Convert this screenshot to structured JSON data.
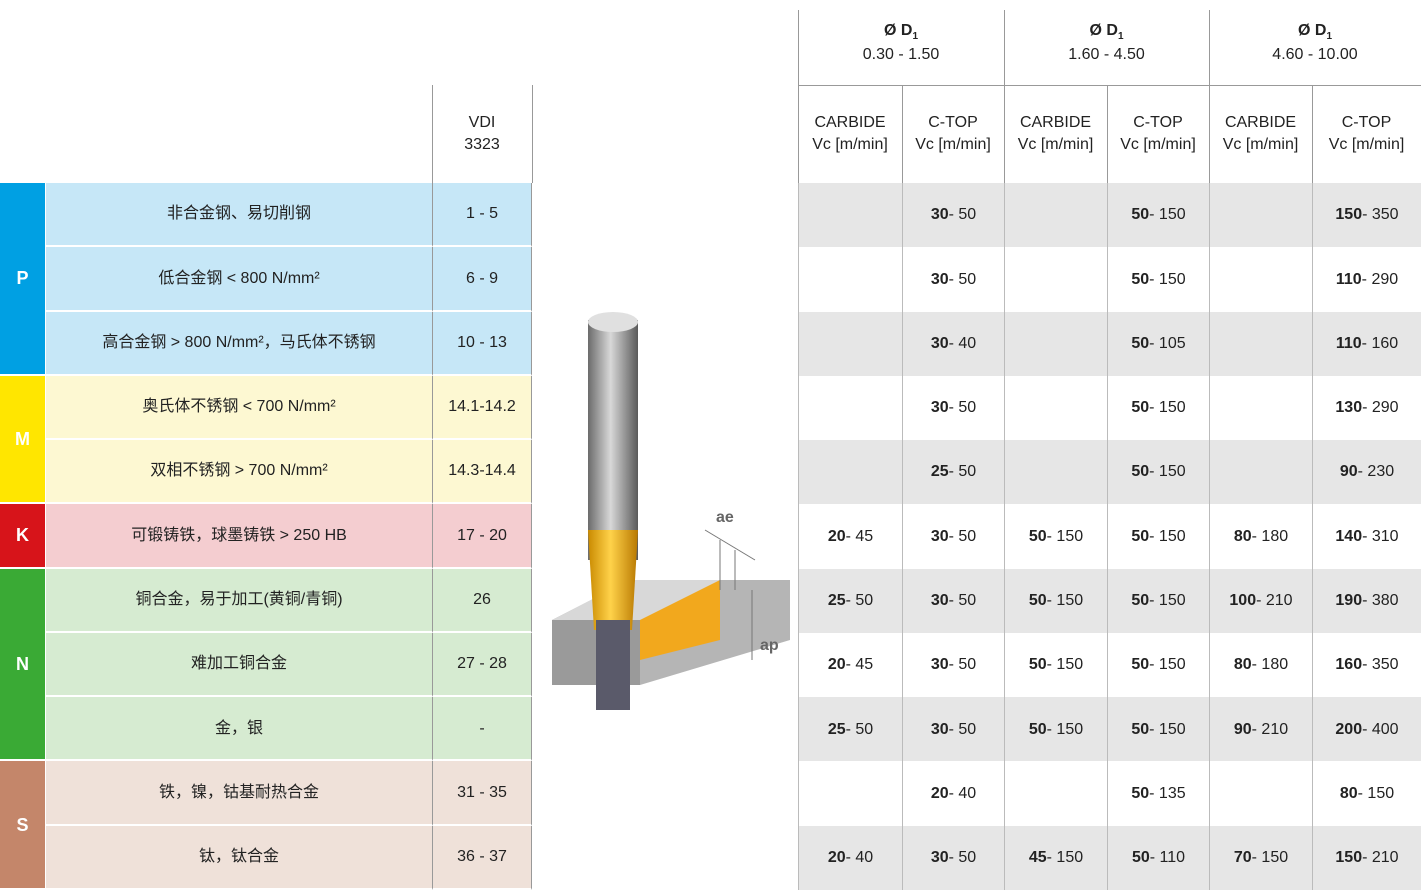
{
  "header": {
    "groups": [
      {
        "symbol": "Ø D",
        "sub": "1",
        "range": "0.30 - 1.50"
      },
      {
        "symbol": "Ø D",
        "sub": "1",
        "range": "1.60 - 4.50"
      },
      {
        "symbol": "Ø D",
        "sub": "1",
        "range": "4.60 - 10.00"
      }
    ],
    "vdi": [
      "VDI",
      "3323"
    ],
    "columns": [
      {
        "grade": "CARBIDE",
        "unit": "Vc [m/min]"
      },
      {
        "grade": "C-TOP",
        "unit": "Vc [m/min]"
      },
      {
        "grade": "CARBIDE",
        "unit": "Vc [m/min]"
      },
      {
        "grade": "C-TOP",
        "unit": "Vc [m/min]"
      },
      {
        "grade": "CARBIDE",
        "unit": "Vc [m/min]"
      },
      {
        "grade": "C-TOP",
        "unit": "Vc [m/min]"
      }
    ]
  },
  "image_labels": [
    "ae",
    "ap"
  ],
  "groups": [
    {
      "letter": "P",
      "color": "#00a0e3",
      "light": "#c6e7f7",
      "rows": [
        {
          "material": "非合金钢、易切削钢",
          "vdi": "1 - 5",
          "cells": [
            null,
            {
              "b": "30",
              "r": " - 50"
            },
            null,
            {
              "b": "50",
              "r": " - 150"
            },
            null,
            {
              "b": "150",
              "r": " - 350"
            }
          ]
        },
        {
          "material": "低合金钢 < 800 N/mm²",
          "vdi": "6 - 9",
          "cells": [
            null,
            {
              "b": "30",
              "r": " - 50"
            },
            null,
            {
              "b": "50",
              "r": " - 150"
            },
            null,
            {
              "b": "110",
              "r": " - 290"
            }
          ]
        },
        {
          "material": "高合金钢 > 800 N/mm²，马氏体不锈钢",
          "vdi": "10 - 13",
          "cells": [
            null,
            {
              "b": "30",
              "r": " - 40"
            },
            null,
            {
              "b": "50",
              "r": " - 105"
            },
            null,
            {
              "b": "110",
              "r": " - 160"
            }
          ]
        }
      ]
    },
    {
      "letter": "M",
      "color": "#ffe600",
      "light": "#fdf8d2",
      "rows": [
        {
          "material": "奥氏体不锈钢 < 700 N/mm²",
          "vdi": "14.1-14.2",
          "cells": [
            null,
            {
              "b": "30",
              "r": " - 50"
            },
            null,
            {
              "b": "50",
              "r": " - 150"
            },
            null,
            {
              "b": "130",
              "r": " - 290"
            }
          ]
        },
        {
          "material": "双相不锈钢 > 700 N/mm²",
          "vdi": "14.3-14.4",
          "cells": [
            null,
            {
              "b": "25",
              "r": " - 50"
            },
            null,
            {
              "b": "50",
              "r": " - 150"
            },
            null,
            {
              "b": "90",
              "r": " - 230"
            }
          ]
        }
      ]
    },
    {
      "letter": "K",
      "color": "#d7141a",
      "light": "#f4cdd0",
      "rows": [
        {
          "material": "可锻铸铁，球墨铸铁 > 250 HB",
          "vdi": "17 - 20",
          "cells": [
            {
              "b": "20",
              "r": " - 45"
            },
            {
              "b": "30",
              "r": " - 50"
            },
            {
              "b": "50",
              "r": " - 150"
            },
            {
              "b": "50",
              "r": " - 150"
            },
            {
              "b": "80",
              "r": " - 180"
            },
            {
              "b": "140",
              "r": " - 310"
            }
          ]
        }
      ]
    },
    {
      "letter": "N",
      "color": "#3aaa35",
      "light": "#d6ebd1",
      "rows": [
        {
          "material": "铜合金，易于加工(黄铜/青铜)",
          "vdi": "26",
          "cells": [
            {
              "b": "25",
              "r": " - 50"
            },
            {
              "b": "30",
              "r": " - 50"
            },
            {
              "b": "50",
              "r": " - 150"
            },
            {
              "b": "50",
              "r": " - 150"
            },
            {
              "b": "100",
              "r": " - 210"
            },
            {
              "b": "190",
              "r": " - 380"
            }
          ]
        },
        {
          "material": "难加工铜合金",
          "vdi": "27 - 28",
          "cells": [
            {
              "b": "20",
              "r": " - 45"
            },
            {
              "b": "30",
              "r": " - 50"
            },
            {
              "b": "50",
              "r": " - 150"
            },
            {
              "b": "50",
              "r": " - 150"
            },
            {
              "b": "80",
              "r": " - 180"
            },
            {
              "b": "160",
              "r": " - 350"
            }
          ]
        },
        {
          "material": "金，银",
          "vdi": "-",
          "cells": [
            {
              "b": "25",
              "r": " - 50"
            },
            {
              "b": "30",
              "r": " - 50"
            },
            {
              "b": "50",
              "r": " - 150"
            },
            {
              "b": "50",
              "r": " - 150"
            },
            {
              "b": "90",
              "r": " - 210"
            },
            {
              "b": "200",
              "r": " - 400"
            }
          ]
        }
      ]
    },
    {
      "letter": "S",
      "color": "#c4866a",
      "light": "#efe1d9",
      "rows": [
        {
          "material": "铁，镍，钴基耐热合金",
          "vdi": "31 - 35",
          "cells": [
            null,
            {
              "b": "20",
              "r": " - 40"
            },
            null,
            {
              "b": "50",
              "r": " - 135"
            },
            null,
            {
              "b": "80",
              "r": " - 150"
            }
          ]
        },
        {
          "material": "钛，钛合金",
          "vdi": "36 - 37",
          "cells": [
            {
              "b": "20",
              "r": " - 40"
            },
            {
              "b": "30",
              "r": " - 50"
            },
            {
              "b": "45",
              "r": " - 150"
            },
            {
              "b": "50",
              "r": " - 110"
            },
            {
              "b": "70",
              "r": " - 150"
            },
            {
              "b": "150",
              "r": " - 210"
            }
          ]
        }
      ]
    }
  ]
}
